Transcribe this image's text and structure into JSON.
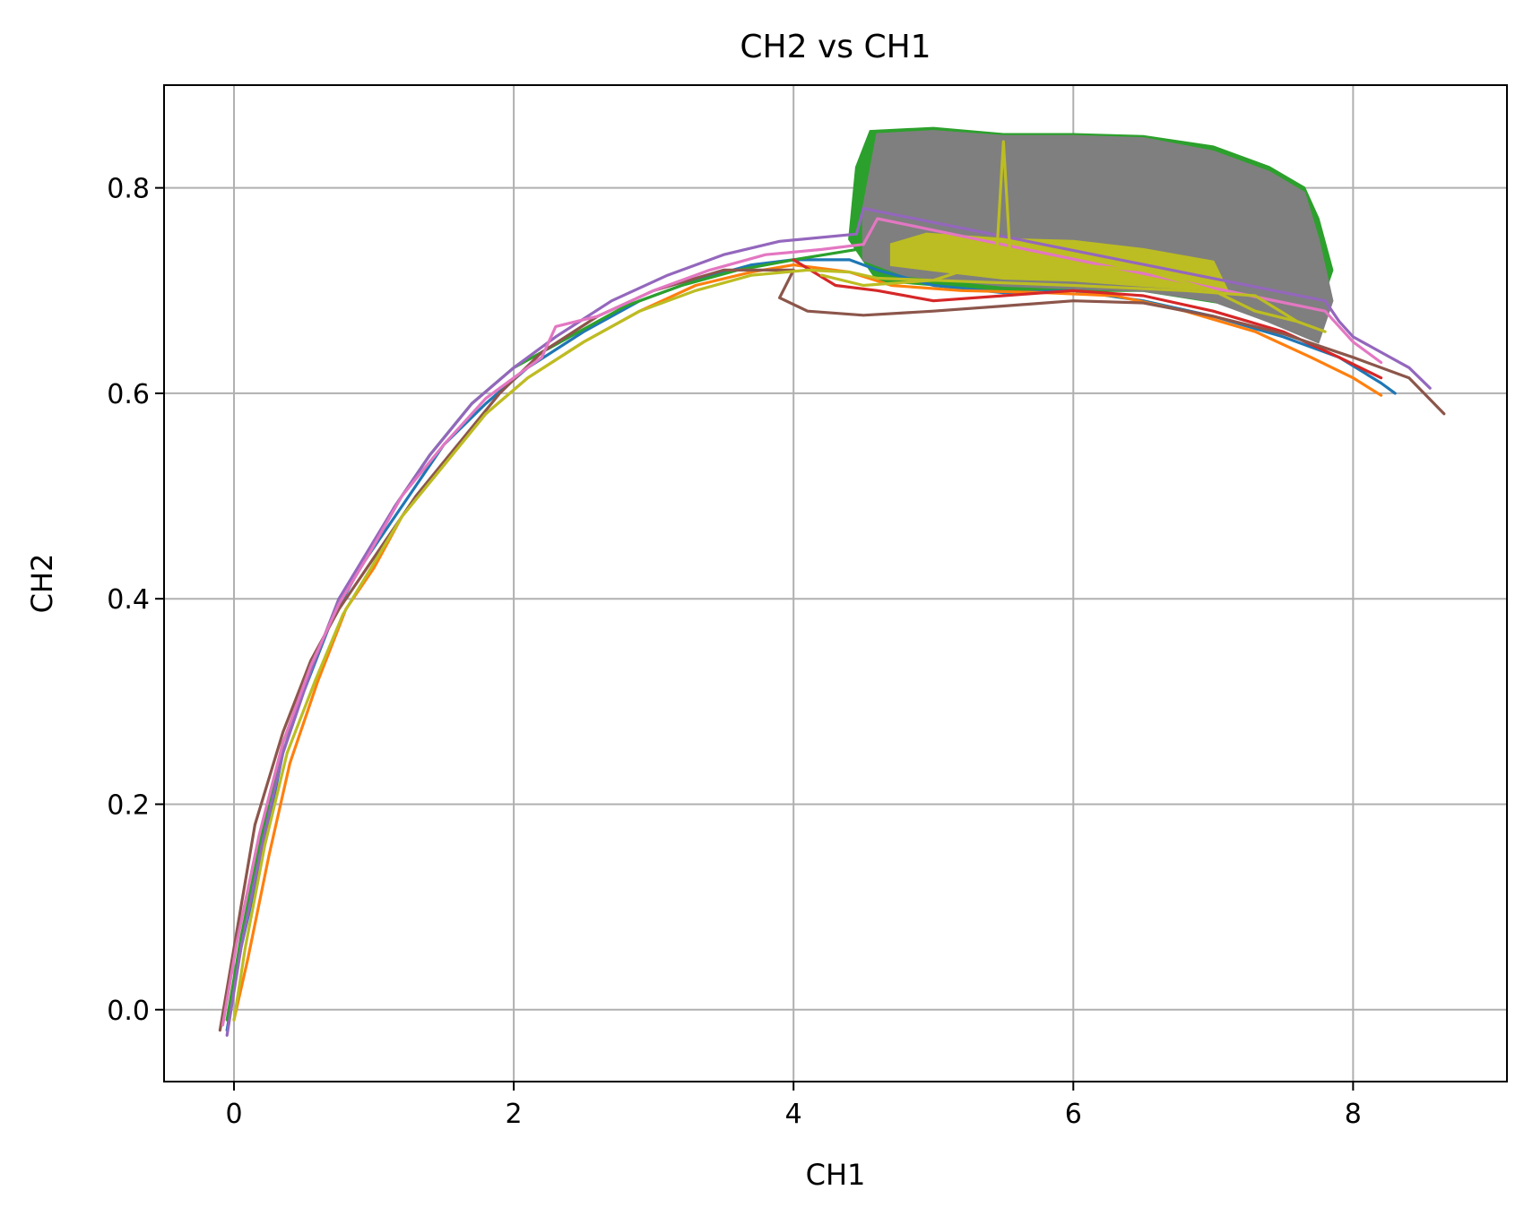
{
  "chart_data": {
    "type": "line",
    "title": "CH2 vs CH1",
    "xlabel": "CH1",
    "ylabel": "CH2",
    "xlim": [
      -0.5,
      9.1
    ],
    "ylim": [
      -0.07,
      0.9
    ],
    "xticks": [
      0,
      2,
      4,
      6,
      8
    ],
    "xtick_labels": [
      "0",
      "2",
      "4",
      "6",
      "8"
    ],
    "yticks": [
      0.0,
      0.2,
      0.4,
      0.6,
      0.8
    ],
    "ytick_labels": [
      "0.0",
      "0.2",
      "0.4",
      "0.6",
      "0.8"
    ],
    "grid": true,
    "legend": "none",
    "bands": [
      {
        "color": "#2ca02c",
        "points": [
          [
            4.45,
            0.82
          ],
          [
            4.55,
            0.855
          ],
          [
            5.0,
            0.858
          ],
          [
            5.5,
            0.852
          ],
          [
            6.0,
            0.852
          ],
          [
            6.5,
            0.85
          ],
          [
            7.0,
            0.84
          ],
          [
            7.4,
            0.82
          ],
          [
            7.65,
            0.8
          ],
          [
            7.75,
            0.77
          ],
          [
            7.85,
            0.72
          ],
          [
            7.7,
            0.66
          ],
          [
            7.2,
            0.685
          ],
          [
            6.5,
            0.7
          ],
          [
            5.5,
            0.7
          ],
          [
            4.6,
            0.71
          ],
          [
            4.4,
            0.75
          ]
        ]
      },
      {
        "color": "#7f7f7f",
        "points": [
          [
            4.5,
            0.78
          ],
          [
            4.6,
            0.852
          ],
          [
            5.0,
            0.855
          ],
          [
            5.5,
            0.85
          ],
          [
            6.0,
            0.85
          ],
          [
            6.5,
            0.848
          ],
          [
            7.0,
            0.835
          ],
          [
            7.4,
            0.815
          ],
          [
            7.65,
            0.795
          ],
          [
            7.75,
            0.75
          ],
          [
            7.85,
            0.69
          ],
          [
            7.75,
            0.65
          ],
          [
            7.4,
            0.67
          ],
          [
            7.0,
            0.69
          ],
          [
            6.5,
            0.7
          ],
          [
            5.5,
            0.705
          ],
          [
            4.8,
            0.715
          ],
          [
            4.5,
            0.73
          ]
        ]
      },
      {
        "color": "#bcbd22",
        "points": [
          [
            4.7,
            0.745
          ],
          [
            4.95,
            0.755
          ],
          [
            5.5,
            0.75
          ],
          [
            6.0,
            0.748
          ],
          [
            6.5,
            0.74
          ],
          [
            7.0,
            0.728
          ],
          [
            7.1,
            0.7
          ],
          [
            6.5,
            0.705
          ],
          [
            6.0,
            0.71
          ],
          [
            5.5,
            0.712
          ],
          [
            5.0,
            0.72
          ],
          [
            4.7,
            0.725
          ]
        ]
      }
    ],
    "series": [
      {
        "color": "#1f77b4",
        "points": [
          [
            -0.05,
            -0.02
          ],
          [
            0.05,
            0.06
          ],
          [
            0.2,
            0.15
          ],
          [
            0.35,
            0.25
          ],
          [
            0.5,
            0.31
          ],
          [
            0.7,
            0.38
          ],
          [
            0.9,
            0.43
          ],
          [
            1.1,
            0.47
          ],
          [
            1.3,
            0.51
          ],
          [
            1.5,
            0.55
          ],
          [
            1.8,
            0.59
          ],
          [
            2.1,
            0.625
          ],
          [
            2.5,
            0.66
          ],
          [
            2.9,
            0.69
          ],
          [
            3.3,
            0.71
          ],
          [
            3.7,
            0.725
          ],
          [
            4.0,
            0.73
          ],
          [
            4.4,
            0.73
          ],
          [
            4.6,
            0.72
          ],
          [
            5.0,
            0.705
          ],
          [
            5.5,
            0.698
          ],
          [
            6.0,
            0.7
          ],
          [
            6.5,
            0.69
          ],
          [
            7.0,
            0.675
          ],
          [
            7.5,
            0.655
          ],
          [
            7.9,
            0.635
          ],
          [
            8.2,
            0.61
          ],
          [
            8.3,
            0.6
          ]
        ]
      },
      {
        "color": "#ff7f0e",
        "points": [
          [
            0.0,
            -0.01
          ],
          [
            0.1,
            0.05
          ],
          [
            0.25,
            0.15
          ],
          [
            0.4,
            0.24
          ],
          [
            0.6,
            0.32
          ],
          [
            0.8,
            0.39
          ],
          [
            1.0,
            0.43
          ],
          [
            1.2,
            0.48
          ],
          [
            1.5,
            0.53
          ],
          [
            1.8,
            0.58
          ],
          [
            2.1,
            0.615
          ],
          [
            2.5,
            0.65
          ],
          [
            2.9,
            0.68
          ],
          [
            3.3,
            0.705
          ],
          [
            3.7,
            0.718
          ],
          [
            4.0,
            0.725
          ],
          [
            4.4,
            0.718
          ],
          [
            4.7,
            0.705
          ],
          [
            5.2,
            0.7
          ],
          [
            5.8,
            0.698
          ],
          [
            6.3,
            0.695
          ],
          [
            6.8,
            0.68
          ],
          [
            7.3,
            0.66
          ],
          [
            7.7,
            0.635
          ],
          [
            8.0,
            0.615
          ],
          [
            8.2,
            0.598
          ]
        ]
      },
      {
        "color": "#2ca02c",
        "points": [
          [
            -0.05,
            -0.01
          ],
          [
            0.05,
            0.07
          ],
          [
            0.2,
            0.17
          ],
          [
            0.35,
            0.26
          ],
          [
            0.55,
            0.33
          ],
          [
            0.75,
            0.4
          ],
          [
            0.95,
            0.44
          ],
          [
            1.15,
            0.49
          ],
          [
            1.4,
            0.54
          ],
          [
            1.7,
            0.59
          ],
          [
            2.0,
            0.625
          ],
          [
            2.4,
            0.655
          ],
          [
            2.8,
            0.685
          ],
          [
            3.2,
            0.705
          ],
          [
            3.6,
            0.72
          ],
          [
            4.0,
            0.73
          ],
          [
            4.45,
            0.74
          ]
        ]
      },
      {
        "color": "#d62728",
        "points": [
          [
            4.0,
            0.73
          ],
          [
            4.3,
            0.705
          ],
          [
            4.6,
            0.7
          ],
          [
            5.0,
            0.69
          ],
          [
            5.5,
            0.695
          ],
          [
            6.0,
            0.7
          ],
          [
            6.5,
            0.695
          ],
          [
            7.0,
            0.68
          ],
          [
            7.5,
            0.66
          ],
          [
            7.9,
            0.635
          ],
          [
            8.2,
            0.615
          ]
        ]
      },
      {
        "color": "#9467bd",
        "points": [
          [
            -0.05,
            -0.025
          ],
          [
            0.05,
            0.06
          ],
          [
            0.2,
            0.16
          ],
          [
            0.35,
            0.25
          ],
          [
            0.55,
            0.33
          ],
          [
            0.75,
            0.4
          ],
          [
            0.95,
            0.445
          ],
          [
            1.15,
            0.49
          ],
          [
            1.4,
            0.54
          ],
          [
            1.7,
            0.59
          ],
          [
            2.0,
            0.625
          ],
          [
            2.3,
            0.655
          ],
          [
            2.7,
            0.69
          ],
          [
            3.1,
            0.715
          ],
          [
            3.5,
            0.735
          ],
          [
            3.9,
            0.748
          ],
          [
            4.45,
            0.755
          ],
          [
            4.5,
            0.78
          ],
          [
            7.8,
            0.69
          ],
          [
            7.9,
            0.67
          ],
          [
            8.0,
            0.655
          ],
          [
            8.2,
            0.64
          ],
          [
            8.4,
            0.625
          ],
          [
            8.55,
            0.605
          ]
        ]
      },
      {
        "color": "#8c564b",
        "points": [
          [
            -0.1,
            -0.02
          ],
          [
            0.0,
            0.06
          ],
          [
            0.15,
            0.18
          ],
          [
            0.35,
            0.27
          ],
          [
            0.55,
            0.34
          ],
          [
            0.75,
            0.39
          ],
          [
            1.0,
            0.44
          ],
          [
            1.3,
            0.5
          ],
          [
            1.6,
            0.55
          ],
          [
            1.9,
            0.6
          ],
          [
            2.2,
            0.64
          ],
          [
            2.6,
            0.675
          ],
          [
            3.0,
            0.7
          ],
          [
            3.5,
            0.72
          ],
          [
            4.0,
            0.72
          ],
          [
            3.9,
            0.693
          ],
          [
            4.1,
            0.68
          ],
          [
            4.5,
            0.676
          ],
          [
            5.0,
            0.68
          ],
          [
            5.5,
            0.685
          ],
          [
            6.0,
            0.69
          ],
          [
            6.5,
            0.688
          ],
          [
            7.0,
            0.675
          ],
          [
            7.5,
            0.658
          ],
          [
            8.0,
            0.635
          ],
          [
            8.4,
            0.615
          ],
          [
            8.65,
            0.58
          ]
        ]
      },
      {
        "color": "#e377c2",
        "points": [
          [
            -0.08,
            -0.015
          ],
          [
            0.02,
            0.065
          ],
          [
            0.18,
            0.17
          ],
          [
            0.35,
            0.26
          ],
          [
            0.55,
            0.335
          ],
          [
            0.75,
            0.395
          ],
          [
            0.95,
            0.44
          ],
          [
            1.2,
            0.5
          ],
          [
            1.5,
            0.55
          ],
          [
            1.8,
            0.595
          ],
          [
            2.2,
            0.635
          ],
          [
            2.3,
            0.665
          ],
          [
            2.6,
            0.675
          ],
          [
            3.0,
            0.7
          ],
          [
            3.4,
            0.72
          ],
          [
            3.8,
            0.735
          ],
          [
            4.2,
            0.74
          ],
          [
            4.5,
            0.745
          ],
          [
            4.6,
            0.77
          ],
          [
            7.8,
            0.68
          ],
          [
            8.0,
            0.65
          ],
          [
            8.2,
            0.63
          ]
        ]
      },
      {
        "color": "#bcbd22",
        "points": [
          [
            0.0,
            -0.01
          ],
          [
            0.08,
            0.06
          ],
          [
            0.22,
            0.16
          ],
          [
            0.38,
            0.25
          ],
          [
            0.58,
            0.32
          ],
          [
            0.78,
            0.385
          ],
          [
            0.98,
            0.43
          ],
          [
            1.2,
            0.48
          ],
          [
            1.5,
            0.53
          ],
          [
            1.8,
            0.58
          ],
          [
            2.1,
            0.615
          ],
          [
            2.5,
            0.65
          ],
          [
            2.9,
            0.68
          ],
          [
            3.3,
            0.7
          ],
          [
            3.7,
            0.715
          ],
          [
            4.1,
            0.72
          ],
          [
            4.4,
            0.718
          ],
          [
            4.6,
            0.712
          ],
          [
            5.0,
            0.71
          ],
          [
            5.45,
            0.73
          ],
          [
            5.5,
            0.845
          ],
          [
            5.55,
            0.73
          ],
          [
            6.0,
            0.725
          ],
          [
            6.5,
            0.72
          ],
          [
            7.0,
            0.7
          ],
          [
            7.3,
            0.68
          ],
          [
            7.6,
            0.67
          ],
          [
            7.8,
            0.66
          ],
          [
            7.6,
            0.67
          ],
          [
            7.3,
            0.695
          ],
          [
            6.8,
            0.7
          ],
          [
            6.0,
            0.705
          ],
          [
            5.0,
            0.71
          ],
          [
            4.5,
            0.705
          ],
          [
            4.2,
            0.715
          ]
        ]
      }
    ]
  }
}
